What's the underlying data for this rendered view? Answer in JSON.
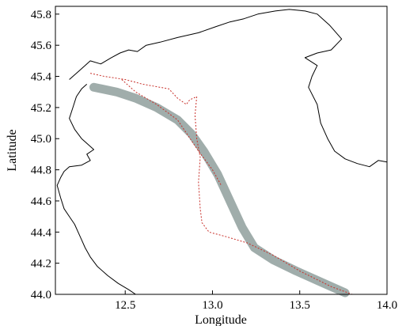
{
  "chart_data": {
    "type": "line",
    "title": "",
    "xlabel": "Longitude",
    "ylabel": "Latitude",
    "xlim": [
      12.1,
      14.0
    ],
    "ylim": [
      44.0,
      45.85
    ],
    "xticks": [
      "12.5",
      "13.0",
      "13.5",
      "14.0"
    ],
    "yticks": [
      "44.0",
      "44.2",
      "44.4",
      "44.6",
      "44.8",
      "45.0",
      "45.2",
      "45.4",
      "45.6",
      "45.8"
    ],
    "grid": false,
    "legend": "none",
    "series": [
      {
        "role": "coastline",
        "color": "#000000",
        "values": [
          [
            12.18,
            45.38
          ],
          [
            12.24,
            45.44
          ],
          [
            12.3,
            45.5
          ],
          [
            12.36,
            45.48
          ],
          [
            12.42,
            45.52
          ],
          [
            12.47,
            45.55
          ],
          [
            12.52,
            45.57
          ],
          [
            12.57,
            45.56
          ],
          [
            12.62,
            45.6
          ],
          [
            12.7,
            45.62
          ],
          [
            12.8,
            45.65
          ],
          [
            12.92,
            45.68
          ],
          [
            13.02,
            45.72
          ],
          [
            13.1,
            45.75
          ],
          [
            13.18,
            45.77
          ],
          [
            13.26,
            45.8
          ],
          [
            13.36,
            45.82
          ],
          [
            13.44,
            45.83
          ],
          [
            13.53,
            45.82
          ],
          [
            13.6,
            45.8
          ],
          [
            13.67,
            45.73
          ],
          [
            13.74,
            45.64
          ],
          [
            13.68,
            45.57
          ],
          [
            13.6,
            45.55
          ],
          [
            13.53,
            45.52
          ],
          [
            13.6,
            45.47
          ],
          [
            13.57,
            45.4
          ],
          [
            13.55,
            45.33
          ],
          [
            13.6,
            45.22
          ],
          [
            13.62,
            45.1
          ],
          [
            13.66,
            45.0
          ],
          [
            13.7,
            44.92
          ],
          [
            13.76,
            44.87
          ],
          [
            13.83,
            44.84
          ],
          [
            13.9,
            44.82
          ],
          [
            13.95,
            44.86
          ],
          [
            14.0,
            44.85
          ]
        ]
      },
      {
        "role": "coastline",
        "color": "#000000",
        "values": [
          [
            12.28,
            45.35
          ],
          [
            12.25,
            45.32
          ],
          [
            12.22,
            45.27
          ],
          [
            12.2,
            45.2
          ],
          [
            12.18,
            45.13
          ],
          [
            12.21,
            45.06
          ],
          [
            12.25,
            45.0
          ],
          [
            12.28,
            44.97
          ],
          [
            12.32,
            44.93
          ],
          [
            12.28,
            44.9
          ],
          [
            12.3,
            44.86
          ],
          [
            12.25,
            44.83
          ],
          [
            12.18,
            44.82
          ],
          [
            12.15,
            44.79
          ],
          [
            12.13,
            44.75
          ],
          [
            12.11,
            44.7
          ],
          [
            12.13,
            44.62
          ],
          [
            12.15,
            44.55
          ],
          [
            12.18,
            44.5
          ],
          [
            12.21,
            44.45
          ],
          [
            12.23,
            44.4
          ],
          [
            12.25,
            44.35
          ],
          [
            12.27,
            44.3
          ],
          [
            12.3,
            44.24
          ],
          [
            12.34,
            44.18
          ],
          [
            12.4,
            44.12
          ],
          [
            12.46,
            44.07
          ],
          [
            12.52,
            44.03
          ],
          [
            12.56,
            44.0
          ]
        ]
      },
      {
        "role": "ship-track",
        "color": "#8f9f9c",
        "values": [
          [
            12.32,
            45.33
          ],
          [
            12.45,
            45.3
          ],
          [
            12.56,
            45.26
          ],
          [
            12.68,
            45.2
          ],
          [
            12.8,
            45.12
          ],
          [
            12.88,
            45.03
          ],
          [
            12.95,
            44.92
          ],
          [
            13.03,
            44.77
          ],
          [
            13.1,
            44.6
          ],
          [
            13.17,
            44.43
          ],
          [
            13.24,
            44.3
          ],
          [
            13.35,
            44.22
          ],
          [
            13.48,
            44.15
          ],
          [
            13.62,
            44.08
          ],
          [
            13.76,
            44.01
          ]
        ]
      },
      {
        "role": "ship-track",
        "color": "#c8302a",
        "values": [
          [
            12.3,
            45.42
          ],
          [
            12.38,
            45.4
          ],
          [
            12.5,
            45.38
          ],
          [
            12.6,
            45.35
          ],
          [
            12.75,
            45.32
          ],
          [
            12.8,
            45.26
          ],
          [
            12.85,
            45.22
          ],
          [
            12.87,
            45.25
          ],
          [
            12.91,
            45.27
          ],
          [
            12.9,
            45.15
          ],
          [
            12.91,
            45.0
          ],
          [
            12.93,
            44.88
          ],
          [
            12.92,
            44.72
          ],
          [
            12.93,
            44.55
          ],
          [
            12.94,
            44.46
          ],
          [
            12.98,
            44.4
          ],
          [
            13.08,
            44.37
          ],
          [
            13.2,
            44.33
          ],
          [
            13.35,
            44.25
          ],
          [
            13.5,
            44.15
          ],
          [
            13.68,
            44.05
          ],
          [
            13.8,
            44.0
          ]
        ]
      },
      {
        "role": "ship-track",
        "color": "#c8302a",
        "values": [
          [
            12.48,
            45.38
          ],
          [
            12.56,
            45.3
          ],
          [
            12.68,
            45.22
          ],
          [
            12.8,
            45.12
          ],
          [
            12.86,
            45.02
          ],
          [
            12.92,
            44.92
          ],
          [
            12.96,
            44.86
          ],
          [
            13.0,
            44.8
          ],
          [
            13.05,
            44.7
          ]
        ]
      }
    ]
  }
}
